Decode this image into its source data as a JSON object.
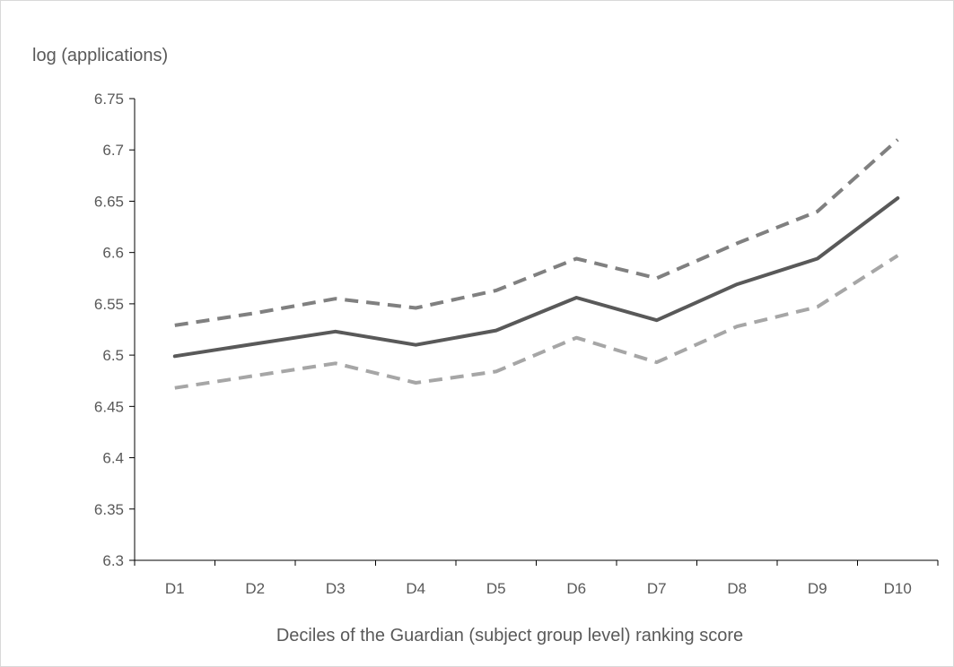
{
  "chart_data": {
    "type": "line",
    "title": "",
    "xlabel": "Deciles of the Guardian (subject group level) ranking score",
    "ylabel": "log (applications)",
    "categories": [
      "D1",
      "D2",
      "D3",
      "D4",
      "D5",
      "D6",
      "D7",
      "D8",
      "D9",
      "D10"
    ],
    "ylim": [
      6.3,
      6.75
    ],
    "yticks": [
      "6.3",
      "6.35",
      "6.4",
      "6.45",
      "6.5",
      "6.55",
      "6.6",
      "6.65",
      "6.7",
      "6.75"
    ],
    "grid": false,
    "legend": "none",
    "series": [
      {
        "style": "solid",
        "color": "#595959",
        "values": [
          6.499,
          6.511,
          6.523,
          6.51,
          6.524,
          6.556,
          6.534,
          6.569,
          6.594,
          6.653
        ]
      },
      {
        "style": "dashed",
        "color": "#808080",
        "values": [
          6.529,
          6.541,
          6.555,
          6.546,
          6.563,
          6.594,
          6.575,
          6.609,
          6.64,
          6.71
        ]
      },
      {
        "style": "dashed",
        "color": "#a6a6a6",
        "values": [
          6.468,
          6.48,
          6.492,
          6.473,
          6.484,
          6.517,
          6.493,
          6.528,
          6.547,
          6.597
        ]
      }
    ]
  }
}
